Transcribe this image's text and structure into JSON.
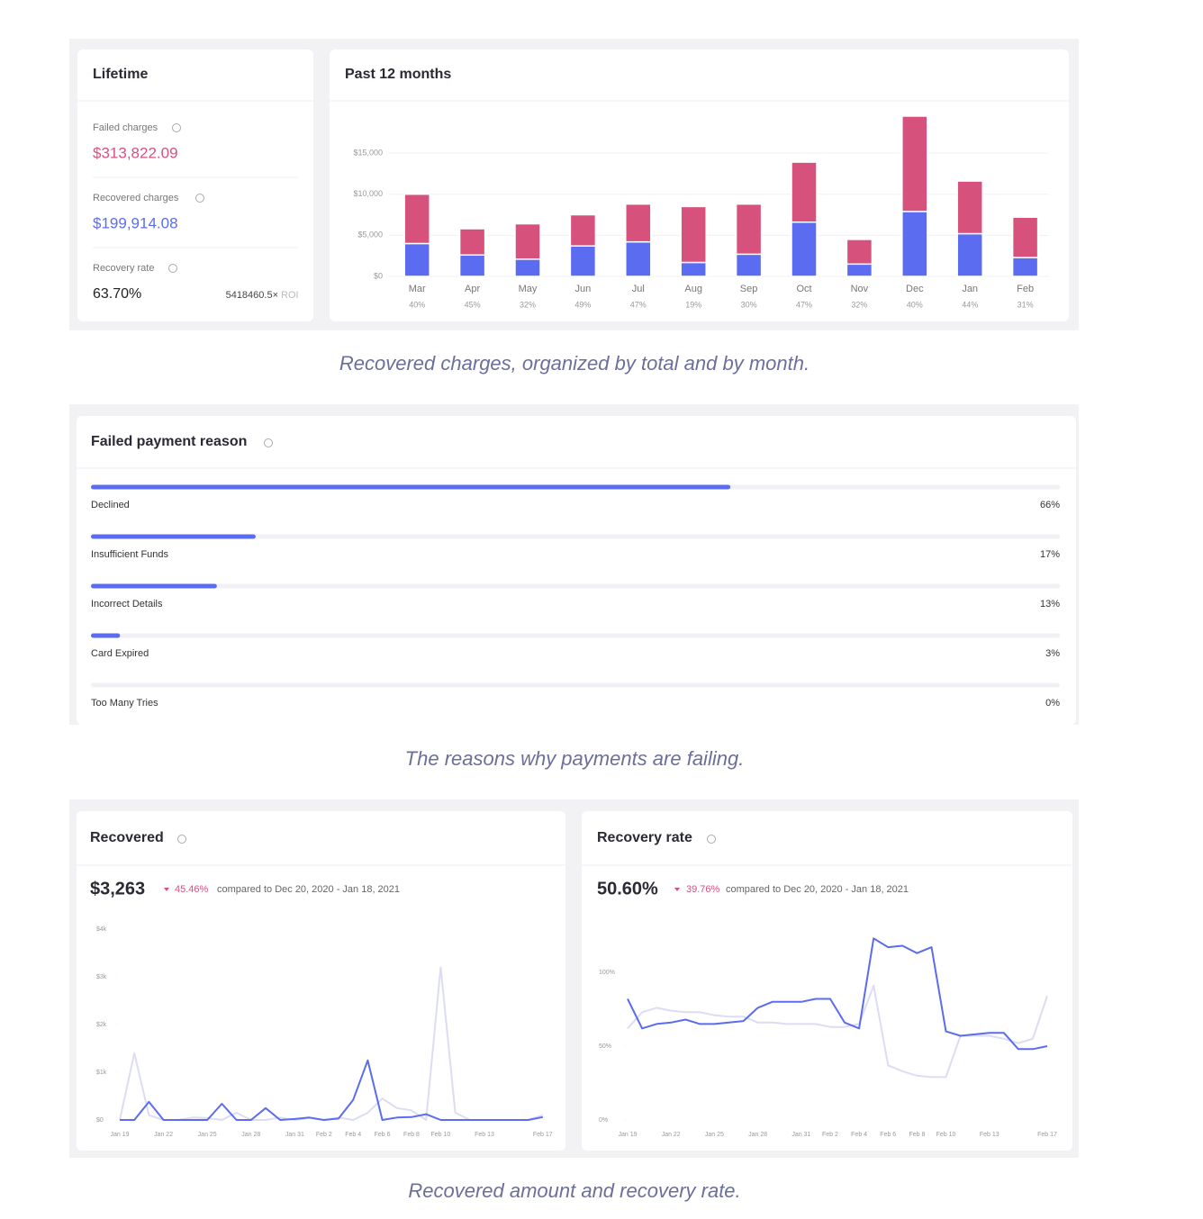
{
  "lifetime": {
    "title": "Lifetime",
    "stats": [
      {
        "label": "Failed charges",
        "value": "$313,822.09"
      },
      {
        "label": "Recovered charges",
        "value": "$199,914.08"
      },
      {
        "label": "Recovery rate",
        "value": "63.70%"
      }
    ],
    "roi": "5418460.5×",
    "roi_label": "ROI"
  },
  "captions": [
    "Recovered charges, organized by total and by month.",
    "The reasons why payments are failing.",
    "Recovered amount and recovery rate."
  ],
  "chart_data": [
    {
      "type": "bar",
      "title": "Past 12 months",
      "stacked": true,
      "grid": true,
      "categories": [
        "Mar",
        "Apr",
        "May",
        "Jun",
        "Jul",
        "Aug",
        "Sep",
        "Oct",
        "Nov",
        "Dec",
        "Jan",
        "Feb"
      ],
      "rate_labels": [
        "40%",
        "45%",
        "32%",
        "49%",
        "47%",
        "19%",
        "30%",
        "47%",
        "32%",
        "40%",
        "44%",
        "31%"
      ],
      "series": [
        {
          "color": "#5b6cf0",
          "values": [
            4000,
            2600,
            2100,
            3700,
            4200,
            1700,
            2700,
            6600,
            1500,
            7900,
            5200,
            2300
          ]
        },
        {
          "color": "#d6527c",
          "values": [
            6000,
            3200,
            4300,
            3800,
            4600,
            6800,
            6100,
            7300,
            3000,
            11600,
            6400,
            4900
          ]
        }
      ],
      "ylim": [
        0,
        20000
      ],
      "yticks": [
        {
          "value": 0,
          "label": "$0"
        },
        {
          "value": 5000,
          "label": "$5,000"
        },
        {
          "value": 10000,
          "label": "$10,000"
        },
        {
          "value": 15000,
          "label": "$15,000"
        }
      ]
    },
    {
      "type": "progress",
      "title": "Failed payment reason",
      "color": "#5b6cf0",
      "categories": [
        "Declined",
        "Insufficient Funds",
        "Incorrect Details",
        "Card Expired",
        "Too Many Tries"
      ],
      "values": [
        66,
        17,
        13,
        3,
        0
      ],
      "value_labels": [
        "66%",
        "17%",
        "13%",
        "3%",
        "0%"
      ],
      "xlim": [
        0,
        100
      ]
    },
    {
      "type": "line",
      "title": "Recovered",
      "headline": "$3,263",
      "change": "45.46%",
      "comparison": "compared to Dec 20, 2020 - Jan 18, 2021",
      "categories": [
        "Jan 19",
        null,
        null,
        "Jan 22",
        null,
        null,
        "Jan 25",
        null,
        null,
        "Jan 28",
        null,
        null,
        "Jan 31",
        null,
        "Feb 2",
        null,
        "Feb 4",
        null,
        "Feb 6",
        null,
        "Feb 8",
        null,
        "Feb 10",
        null,
        null,
        "Feb 13",
        null,
        null,
        null,
        "Feb 17"
      ],
      "series": [
        {
          "color": "#dcdcf3",
          "values": [
            0,
            1400,
            100,
            0,
            0,
            50,
            40,
            0,
            150,
            0,
            0,
            50,
            0,
            40,
            0,
            50,
            0,
            150,
            450,
            250,
            200,
            0,
            3200,
            150,
            0,
            0,
            0,
            0,
            0,
            100
          ]
        },
        {
          "color": "#5b6cf0",
          "values": [
            0,
            0,
            380,
            0,
            0,
            0,
            0,
            340,
            0,
            0,
            250,
            0,
            20,
            50,
            0,
            30,
            420,
            1250,
            0,
            50,
            60,
            120,
            0,
            0,
            0,
            0,
            0,
            0,
            0,
            60
          ]
        }
      ],
      "ylim": [
        0,
        4000
      ],
      "yticks": [
        {
          "value": 0,
          "label": "$0"
        },
        {
          "value": 1000,
          "label": "$1k"
        },
        {
          "value": 2000,
          "label": "$2k"
        },
        {
          "value": 3000,
          "label": "$3k"
        },
        {
          "value": 4000,
          "label": "$4k"
        }
      ]
    },
    {
      "type": "line",
      "title": "Recovery rate",
      "headline": "50.60%",
      "change": "39.76%",
      "comparison": "compared to Dec 20, 2020 - Jan 18, 2021",
      "categories": [
        "Jan 19",
        null,
        null,
        "Jan 22",
        null,
        null,
        "Jan 25",
        null,
        null,
        "Jan 28",
        null,
        null,
        "Jan 31",
        null,
        "Feb 2",
        null,
        "Feb 4",
        null,
        "Feb 6",
        null,
        "Feb 8",
        null,
        "Feb 10",
        null,
        null,
        "Feb 13",
        null,
        null,
        null,
        "Feb 17"
      ],
      "series": [
        {
          "color": "#dcdcf3",
          "values": [
            62,
            73,
            76,
            74,
            73,
            73,
            71,
            70,
            70,
            66,
            66,
            65,
            65,
            65,
            63,
            63,
            65,
            91,
            37,
            33,
            30,
            29,
            29,
            57,
            57,
            57,
            55,
            52,
            55,
            84
          ]
        },
        {
          "color": "#5b6cf0",
          "values": [
            82,
            62,
            65,
            66,
            68,
            65,
            65,
            66,
            67,
            76,
            80,
            80,
            80,
            82,
            82,
            66,
            62,
            123,
            117,
            118,
            113,
            117,
            60,
            57,
            58,
            59,
            59,
            48,
            48,
            50
          ]
        }
      ],
      "ylim": [
        0,
        130
      ],
      "yticks": [
        {
          "value": 0,
          "label": "0%"
        },
        {
          "value": 50,
          "label": "50%"
        },
        {
          "value": 100,
          "label": "100%"
        }
      ]
    }
  ]
}
